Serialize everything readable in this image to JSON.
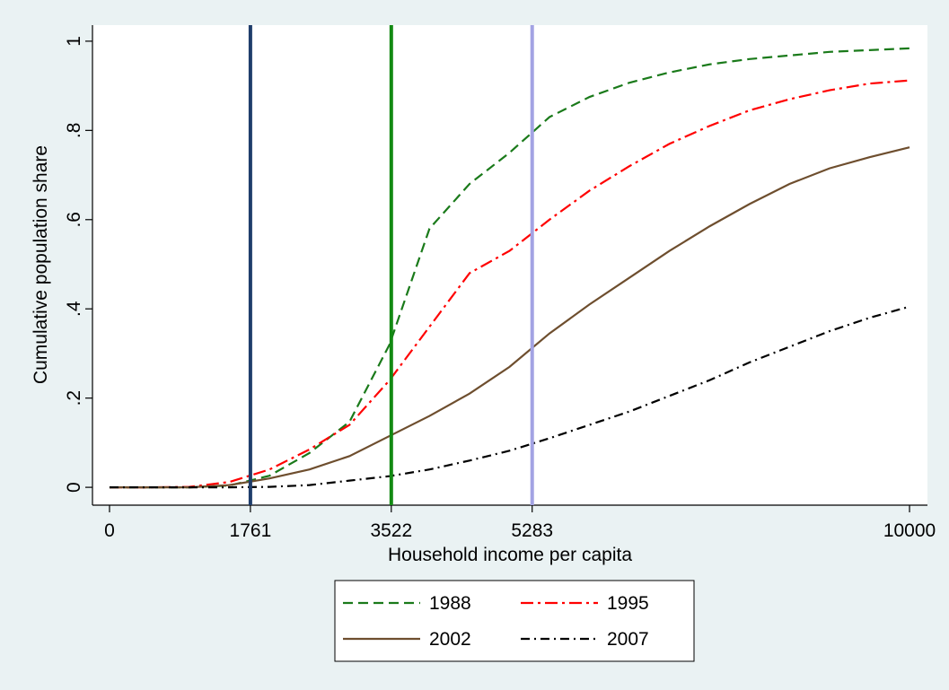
{
  "chart_data": {
    "type": "line",
    "x_label": "Household income per capita",
    "y_label": "Cumulative population share",
    "xlim": [
      -213,
      10224
    ],
    "ylim": [
      -0.04,
      1.036
    ],
    "xticks": [
      0,
      1761,
      3522,
      5283,
      10000
    ],
    "yticks": [
      0,
      {
        "value": 0.2,
        "label": ".2"
      },
      {
        "value": 0.4,
        "label": ".4"
      },
      {
        "value": 0.6,
        "label": ".6"
      },
      {
        "value": 0.8,
        "label": ".8"
      },
      1
    ],
    "vlines": [
      {
        "value": 1761,
        "color": "#1f3d6b"
      },
      {
        "value": 3522,
        "color": "#138a13"
      },
      {
        "value": 5283,
        "color": "#a3a3e3"
      }
    ],
    "x": [
      0,
      500,
      1000,
      1500,
      2000,
      2500,
      3000,
      3500,
      4000,
      4500,
      5000,
      5500,
      6000,
      6500,
      7000,
      7500,
      8000,
      8500,
      9000,
      9500,
      10000
    ],
    "series": [
      {
        "name": "1988",
        "color": "#1a7a1a",
        "line_style": "dash",
        "values": [
          0,
          0,
          0,
          0.004,
          0.026,
          0.077,
          0.147,
          0.32,
          0.58,
          0.68,
          0.75,
          0.83,
          0.875,
          0.907,
          0.93,
          0.948,
          0.96,
          0.968,
          0.976,
          0.98,
          0.984
        ]
      },
      {
        "name": "1995",
        "color": "#ff0000",
        "line_style": "longdashdot",
        "values": [
          0,
          0,
          0.001,
          0.012,
          0.04,
          0.085,
          0.14,
          0.24,
          0.36,
          0.48,
          0.53,
          0.6,
          0.665,
          0.72,
          0.77,
          0.81,
          0.845,
          0.87,
          0.89,
          0.905,
          0.912
        ]
      },
      {
        "name": "2002",
        "color": "#6e4e2e",
        "line_style": "solid",
        "values": [
          0,
          0,
          0,
          0.005,
          0.02,
          0.04,
          0.07,
          0.115,
          0.16,
          0.21,
          0.27,
          0.345,
          0.41,
          0.47,
          0.53,
          0.585,
          0.635,
          0.68,
          0.715,
          0.74,
          0.762
        ]
      },
      {
        "name": "2007",
        "color": "#000000",
        "line_style": "dashdot",
        "values": [
          0,
          0,
          0,
          0,
          0.001,
          0.005,
          0.015,
          0.025,
          0.04,
          0.06,
          0.082,
          0.11,
          0.14,
          0.17,
          0.205,
          0.24,
          0.28,
          0.315,
          0.35,
          0.38,
          0.405
        ]
      }
    ],
    "legend": "bottom"
  }
}
